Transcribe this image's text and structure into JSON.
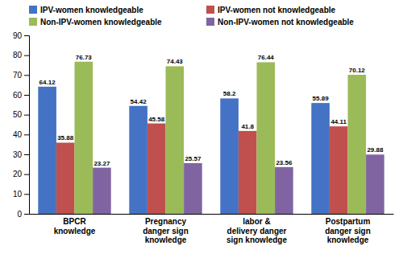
{
  "chart_data": {
    "type": "bar",
    "categories": [
      "BPCR\nknowledge",
      "Pregnancy\ndanger sign\nknowledge",
      "labor &\ndelivery danger\nsign knowledge",
      "Postpartum\ndanger sign\nknowledge"
    ],
    "series": [
      {
        "name": "IPV-women knowledgeable",
        "color": "#4472C4",
        "values": [
          64.12,
          54.42,
          58.2,
          55.89
        ]
      },
      {
        "name": "IPV-women not knowledgeable",
        "color": "#C0504D",
        "values": [
          35.88,
          45.58,
          41.8,
          44.11
        ]
      },
      {
        "name": "Non-IPV-women knowledgeable",
        "color": "#9BBB59",
        "values": [
          76.73,
          74.43,
          76.44,
          70.12
        ]
      },
      {
        "name": "Non-IPV-women not knowledgeable",
        "color": "#8064A2",
        "values": [
          23.27,
          25.57,
          23.56,
          29.88
        ]
      }
    ],
    "ylim": [
      0,
      90
    ],
    "yticks": [
      0,
      10,
      20,
      30,
      40,
      50,
      60,
      70,
      80,
      90
    ],
    "grid": false,
    "legend": "top",
    "data_labels": true
  }
}
